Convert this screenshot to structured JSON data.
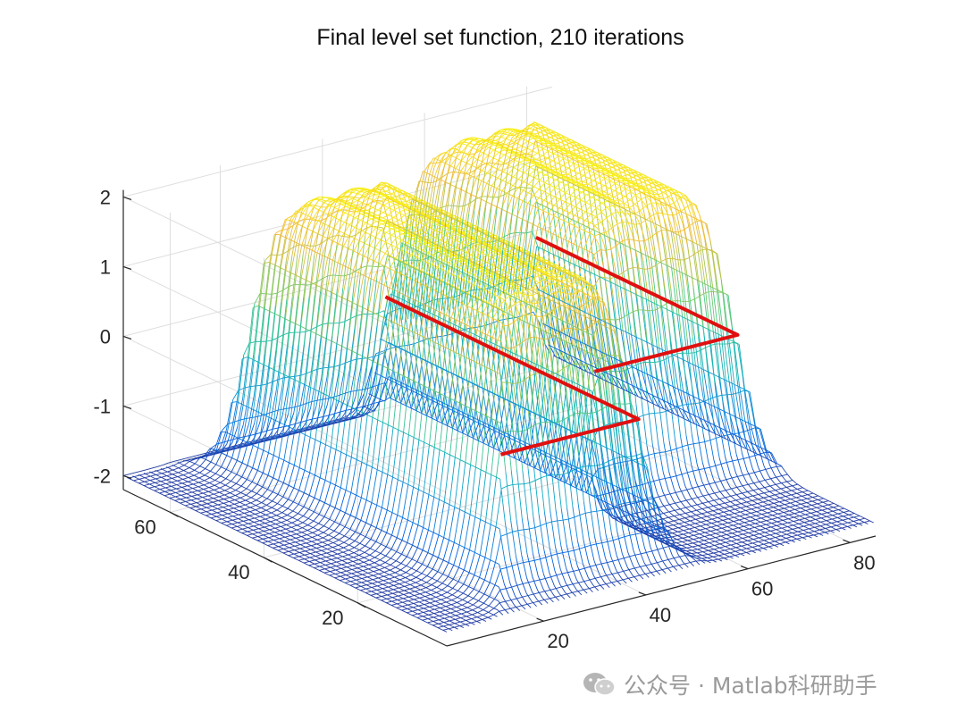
{
  "chart_data": {
    "type": "surface",
    "title": "Final level set function, 210 iterations",
    "xlabel": "",
    "ylabel": "",
    "zlabel": "",
    "x_ticks": [
      20,
      40,
      60,
      80
    ],
    "y_ticks": [
      20,
      40,
      60
    ],
    "z_ticks": [
      -2,
      -1,
      0,
      1,
      2
    ],
    "xlim": [
      1,
      85
    ],
    "ylim": [
      1,
      70
    ],
    "zlim": [
      -2.2,
      2.1
    ],
    "grid": true,
    "colormap": "parula",
    "zero_contour_color": "#e01010",
    "mesh_floor_color": "#5a4cf0",
    "regions": [
      {
        "name": "left block",
        "x_range": [
          18,
          45
        ],
        "y_range": [
          8,
          62
        ],
        "z_plateau": 2,
        "z_floor": -2
      },
      {
        "name": "right block",
        "x_range": [
          52,
          80
        ],
        "y_range": [
          25,
          68
        ],
        "z_plateau": 2,
        "z_floor": -2
      }
    ]
  },
  "watermark": {
    "text": "公众号 · Matlab科研助手"
  }
}
